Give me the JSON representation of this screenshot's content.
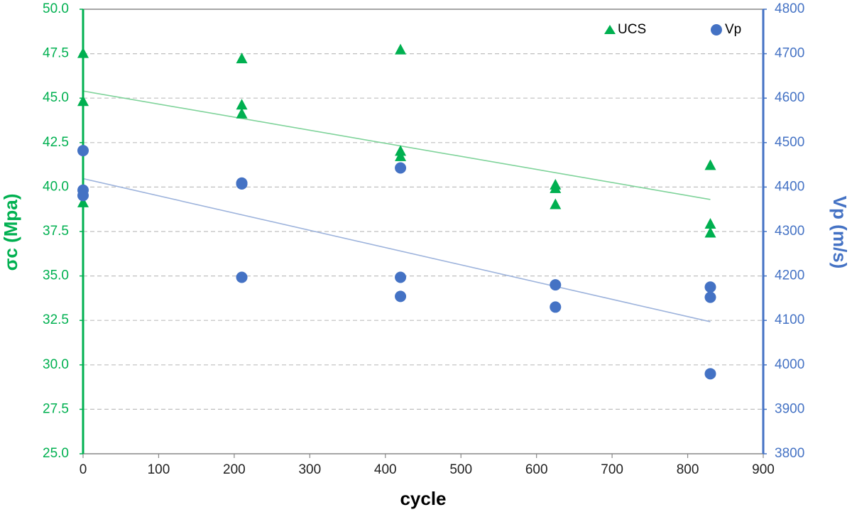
{
  "colors": {
    "ucs": "#00b050",
    "vp": "#4472c4",
    "ucs_trend": "#7fd39a",
    "vp_trend": "#9db3dc",
    "grid": "#bfbfbf",
    "frame": "#888888",
    "text": "#000000"
  },
  "chart_data": {
    "type": "scatter",
    "xlabel": "cycle",
    "ylabel_left": "σc (Mpa)",
    "ylabel_right": "Vp (m/s)",
    "xlim": [
      0,
      900
    ],
    "x_ticks": [
      "0",
      "100",
      "200",
      "300",
      "400",
      "500",
      "600",
      "700",
      "800",
      "900"
    ],
    "x_tick_values": [
      0,
      100,
      200,
      300,
      400,
      500,
      600,
      700,
      800,
      900
    ],
    "ylim_left": [
      25,
      50
    ],
    "y_left_ticks": [
      "25.0",
      "27.5",
      "30.0",
      "32.5",
      "35.0",
      "37.5",
      "40.0",
      "42.5",
      "45.0",
      "47.5",
      "50.0"
    ],
    "y_left_tick_values": [
      25,
      27.5,
      30,
      32.5,
      35,
      37.5,
      40,
      42.5,
      45,
      47.5,
      50
    ],
    "ylim_right": [
      3800,
      4800
    ],
    "y_right_ticks": [
      "3800",
      "3900",
      "4000",
      "4100",
      "4200",
      "4300",
      "4400",
      "4500",
      "4600",
      "4700",
      "4800"
    ],
    "y_right_tick_values": [
      3800,
      3900,
      4000,
      4100,
      4200,
      4300,
      4400,
      4500,
      4600,
      4700,
      4800
    ],
    "grid": true,
    "legend_position": "top-right",
    "series": [
      {
        "name": "UCS",
        "axis": "left",
        "marker": "triangle",
        "x": [
          0,
          0,
          0,
          210,
          210,
          210,
          420,
          420,
          420,
          625,
          625,
          625,
          830,
          830,
          830
        ],
        "y": [
          47.5,
          44.8,
          39.1,
          47.2,
          44.6,
          44.1,
          47.7,
          42.0,
          41.7,
          40.1,
          39.9,
          39.0,
          41.2,
          37.9,
          37.4
        ]
      },
      {
        "name": "Vp",
        "axis": "right",
        "marker": "circle",
        "x": [
          0,
          0,
          0,
          210,
          210,
          210,
          420,
          420,
          420,
          625,
          625,
          830,
          830,
          830
        ],
        "y": [
          4482,
          4393,
          4381,
          4409,
          4407,
          4197,
          4443,
          4197,
          4154,
          4180,
          4130,
          4175,
          4152,
          3980
        ]
      }
    ],
    "trendlines": [
      {
        "series": "UCS",
        "axis": "left",
        "x": [
          0,
          830
        ],
        "y": [
          45.4,
          39.3
        ]
      },
      {
        "series": "Vp",
        "axis": "right",
        "x": [
          0,
          830
        ],
        "y": [
          4419,
          4097
        ]
      }
    ]
  }
}
